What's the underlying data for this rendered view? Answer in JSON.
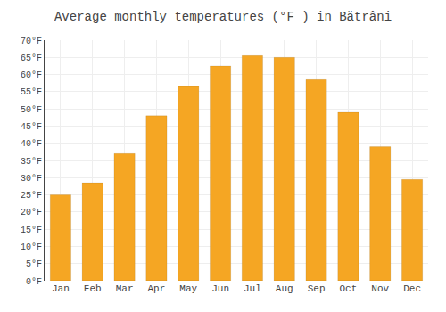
{
  "chart_data": {
    "type": "bar",
    "title": "Average monthly temperatures (°F ) in Bătrâni",
    "categories": [
      "Jan",
      "Feb",
      "Mar",
      "Apr",
      "May",
      "Jun",
      "Jul",
      "Aug",
      "Sep",
      "Oct",
      "Nov",
      "Dec"
    ],
    "values": [
      25,
      28.5,
      37,
      48,
      56.5,
      62.5,
      65.5,
      65,
      58.5,
      49,
      39,
      29.5
    ],
    "color": "#F5A623",
    "ylim": [
      0,
      70
    ],
    "yticks": [
      {
        "value": 0,
        "label": "0°F"
      },
      {
        "value": 5,
        "label": "5°F"
      },
      {
        "value": 10,
        "label": "10°F"
      },
      {
        "value": 15,
        "label": "15°F"
      },
      {
        "value": 20,
        "label": "20°F"
      },
      {
        "value": 25,
        "label": "25°F"
      },
      {
        "value": 30,
        "label": "30°F"
      },
      {
        "value": 35,
        "label": "35°F"
      },
      {
        "value": 40,
        "label": "40°F"
      },
      {
        "value": 45,
        "label": "45°F"
      },
      {
        "value": 50,
        "label": "50°F"
      },
      {
        "value": 55,
        "label": "55°F"
      },
      {
        "value": 60,
        "label": "60°F"
      },
      {
        "value": 65,
        "label": "65°F"
      },
      {
        "value": 70,
        "label": "70°F"
      }
    ],
    "grid": true
  }
}
